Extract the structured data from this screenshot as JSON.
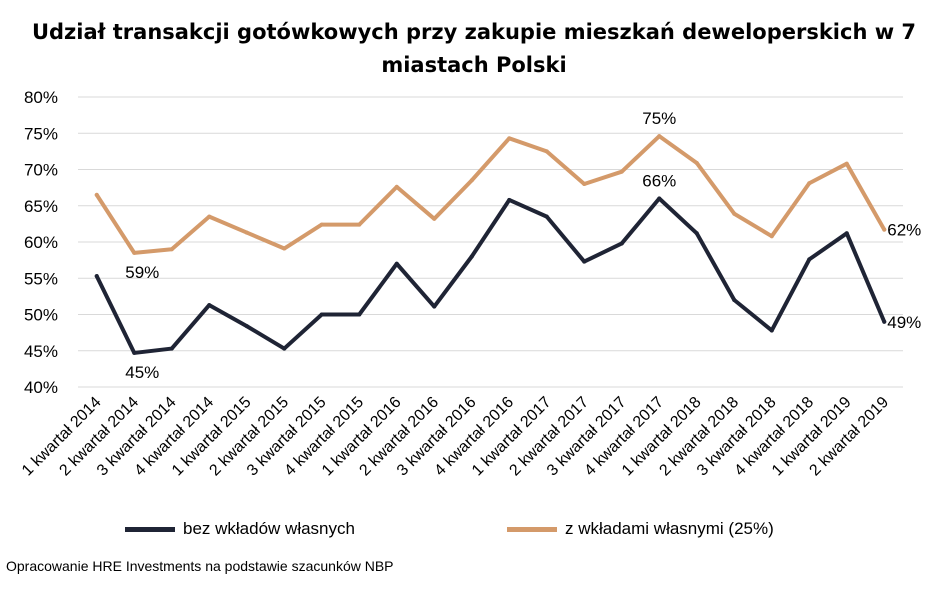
{
  "title": "Udział transakcji gotówkowych przy zakupie mieszkań deweloperskich w 7 miastach Polski",
  "source": "Opracowanie HRE Investments na podstawie szacunków NBP",
  "colors": {
    "series1": "#1f2435",
    "series2": "#d49a6a",
    "grid": "#d9d9d9"
  },
  "chart_data": {
    "type": "line",
    "title": "Udział transakcji gotówkowych przy zakupie mieszkań deweloperskich w 7 miastach Polski",
    "xlabel": "",
    "ylabel": "",
    "ylim": [
      40,
      80
    ],
    "yticks": [
      "40%",
      "45%",
      "50%",
      "55%",
      "60%",
      "65%",
      "70%",
      "75%",
      "80%"
    ],
    "grid": true,
    "legend_position": "bottom",
    "categories": [
      "1 kwartał 2014",
      "2 kwartał 2014",
      "3 kwartał 2014",
      "4 kwartał 2014",
      "1 kwartał 2015",
      "2 kwartał 2015",
      "3 kwartał 2015",
      "4 kwartał 2015",
      "1 kwartał 2016",
      "2 kwartał 2016",
      "3 kwartał 2016",
      "4 kwartał 2016",
      "1 kwartał 2017",
      "2 kwartał 2017",
      "3 kwartał 2017",
      "4 kwartał 2017",
      "1 kwartał 2018",
      "2 kwartał 2018",
      "3 kwartał 2018",
      "4 kwartał 2018",
      "1 kwartał 2019",
      "2 kwartał 2019"
    ],
    "series": [
      {
        "name": "bez wkładów własnych",
        "color": "#1f2435",
        "values": [
          55.3,
          44.7,
          45.3,
          51.3,
          48.4,
          45.3,
          50.0,
          50.0,
          57.0,
          51.1,
          58.0,
          65.8,
          63.5,
          57.3,
          59.8,
          66.0,
          61.2,
          52.0,
          47.8,
          57.6,
          61.2,
          49.0
        ],
        "labels": [
          {
            "index": 1,
            "text": "45%"
          },
          {
            "index": 15,
            "text": "66%"
          },
          {
            "index": 21,
            "text": "49%"
          }
        ]
      },
      {
        "name": "z wkładami własnymi (25%)",
        "color": "#d49a6a",
        "values": [
          66.5,
          58.5,
          59.0,
          63.5,
          61.3,
          59.1,
          62.4,
          62.4,
          67.6,
          63.2,
          68.5,
          74.3,
          72.5,
          68.0,
          69.7,
          74.6,
          70.9,
          63.9,
          60.8,
          68.1,
          70.8,
          61.7
        ],
        "labels": [
          {
            "index": 1,
            "text": "59%"
          },
          {
            "index": 15,
            "text": "75%"
          },
          {
            "index": 21,
            "text": "62%"
          }
        ]
      }
    ]
  }
}
